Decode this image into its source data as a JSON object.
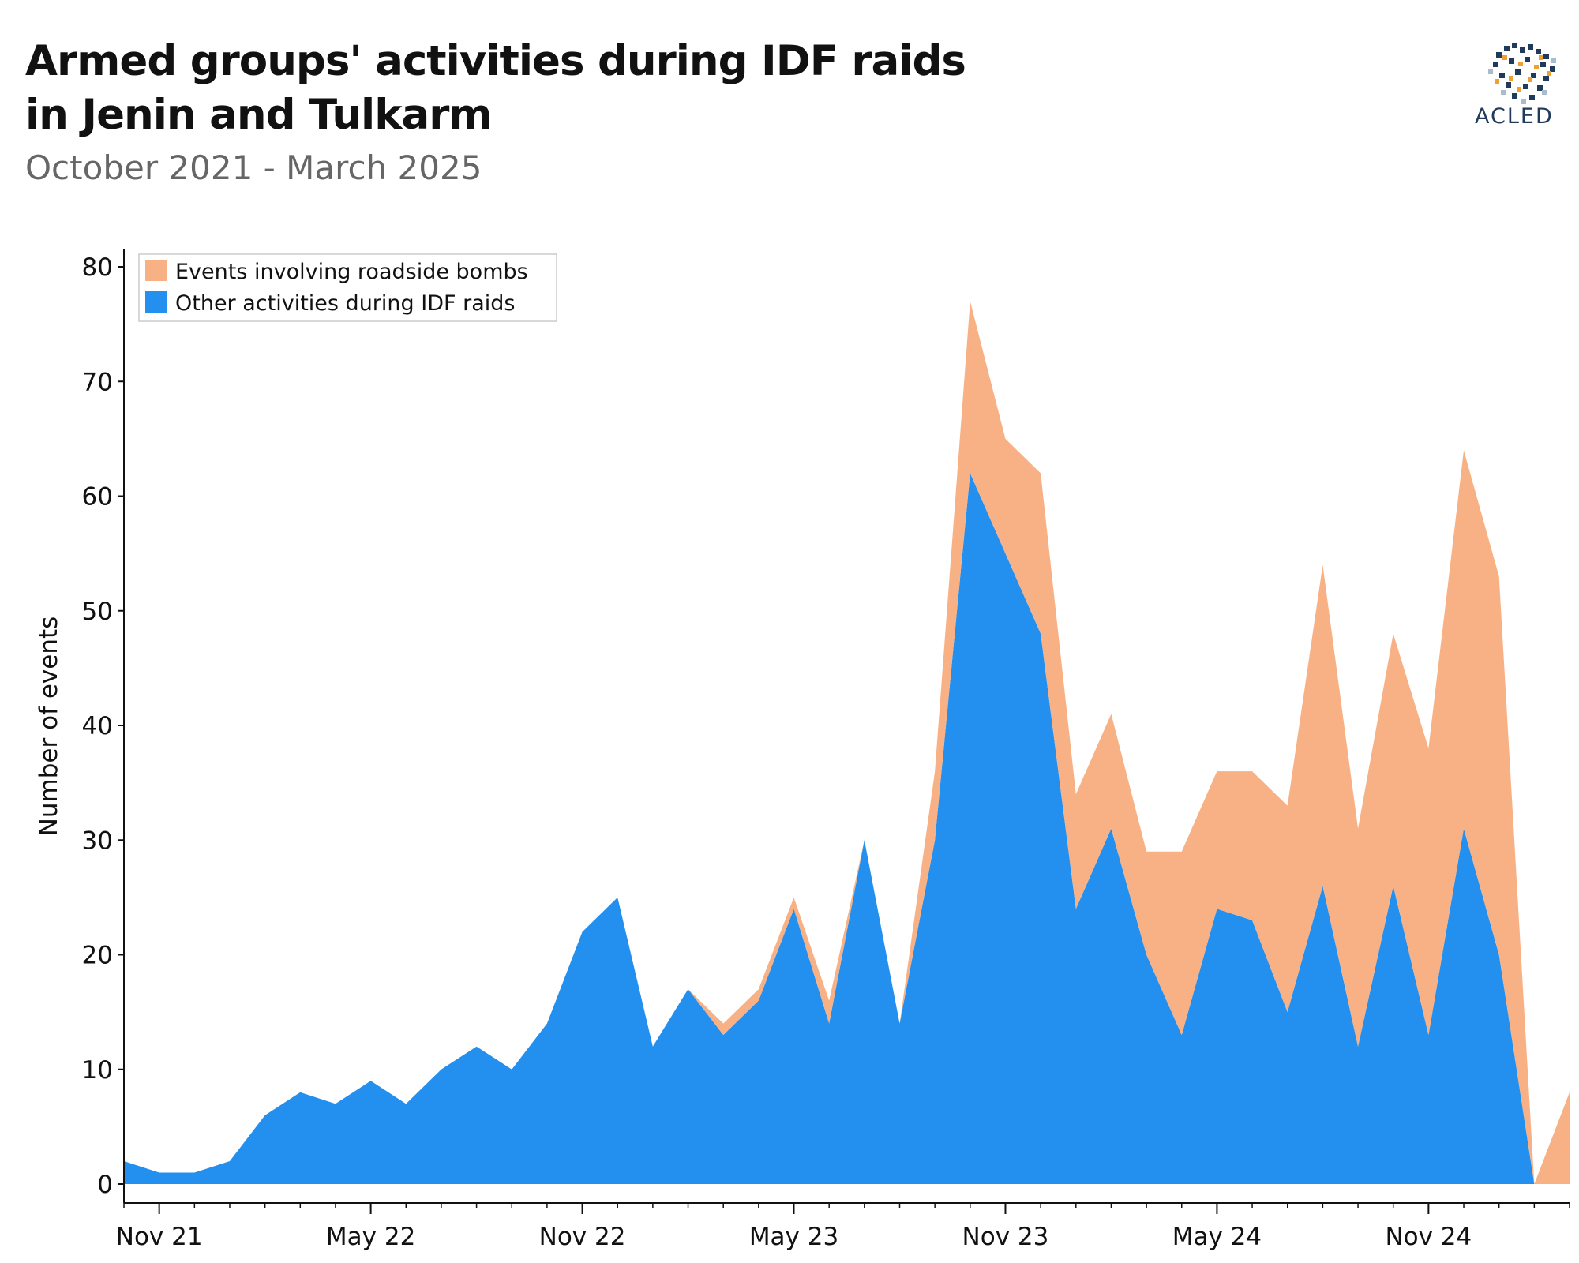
{
  "title_line1": "Armed groups' activities during IDF raids",
  "title_line2": "in Jenin and Tulkarm",
  "subtitle": "October 2021 - March 2025",
  "logo_text": "ACLED",
  "chart_data": {
    "type": "area",
    "stacked": true,
    "ylabel": "Number of events",
    "xlabel": "",
    "ylim": [
      0,
      80
    ],
    "yticks": [
      0,
      10,
      20,
      30,
      40,
      50,
      60,
      70,
      80
    ],
    "xtick_labels": [
      "Nov 21",
      "May 22",
      "Nov 22",
      "May 23",
      "Nov 23",
      "May 24",
      "Nov 24"
    ],
    "x": [
      "2021-10",
      "2021-11",
      "2021-12",
      "2022-01",
      "2022-02",
      "2022-03",
      "2022-04",
      "2022-05",
      "2022-06",
      "2022-07",
      "2022-08",
      "2022-09",
      "2022-10",
      "2022-11",
      "2022-12",
      "2023-01",
      "2023-02",
      "2023-03",
      "2023-04",
      "2023-05",
      "2023-06",
      "2023-07",
      "2023-08",
      "2023-09",
      "2023-10",
      "2023-11",
      "2023-12",
      "2024-01",
      "2024-02",
      "2024-03",
      "2024-04",
      "2024-05",
      "2024-06",
      "2024-07",
      "2024-08",
      "2024-09",
      "2024-10",
      "2024-11",
      "2024-12",
      "2025-01",
      "2025-02",
      "2025-03"
    ],
    "series": [
      {
        "name": "Other activities during IDF raids",
        "color": "#2390f0",
        "values": [
          2,
          1,
          1,
          2,
          6,
          8,
          7,
          9,
          7,
          10,
          12,
          10,
          14,
          22,
          25,
          12,
          17,
          13,
          16,
          24,
          14,
          30,
          14,
          30,
          62,
          55,
          48,
          24,
          31,
          20,
          13,
          24,
          23,
          15,
          26,
          12,
          26,
          13,
          31,
          20,
          0,
          0
        ]
      },
      {
        "name": "Events involving roadside bombs",
        "color": "#f8b185",
        "values": [
          0,
          0,
          0,
          0,
          0,
          0,
          0,
          0,
          0,
          0,
          0,
          0,
          0,
          0,
          0,
          0,
          0,
          1,
          1,
          1,
          2,
          0,
          0,
          6,
          15,
          10,
          14,
          10,
          10,
          9,
          16,
          12,
          13,
          18,
          28,
          19,
          22,
          25,
          33,
          33,
          0,
          8
        ]
      }
    ],
    "legend_position": "top-left",
    "grid": false
  }
}
